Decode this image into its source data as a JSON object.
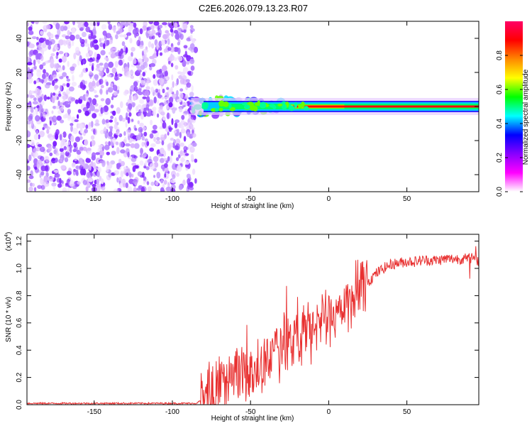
{
  "title": "C2E6.2026.079.13.23.R07",
  "chart_data": [
    {
      "type": "heatmap",
      "title": "C2E6.2026.079.13.23.R07",
      "xlabel": "Height of straight line (km)",
      "ylabel": "Frequency (Hz)",
      "xlim": [
        -193,
        96
      ],
      "ylim": [
        -50,
        50
      ],
      "xticks": [
        -150,
        -100,
        -50,
        0,
        50
      ],
      "xtick_labels": [
        "-150",
        "-100",
        "-50",
        "0",
        "50"
      ],
      "yticks": [
        -40,
        -20,
        0,
        20,
        40
      ],
      "ytick_labels": [
        "-40",
        "-20",
        "0",
        "20",
        "40"
      ],
      "noise_region_x": [
        -193,
        -85
      ],
      "signal_line_freq_hz": 0,
      "colorbar": {
        "label": "Normalized spectral amplitude",
        "range": [
          0,
          1
        ],
        "ticks": [
          0,
          0.2,
          0.4,
          0.6,
          0.8
        ],
        "tick_labels": [
          "0.0",
          "0.2",
          "0.4",
          "0.6",
          "0.8"
        ],
        "colormap": [
          "#ffffff",
          "#ff00ff",
          "#8800ff",
          "#0000ff",
          "#00ffff",
          "#00ff00",
          "#ffff00",
          "#ff8800",
          "#ff0000",
          "#ff0066"
        ]
      }
    },
    {
      "type": "line",
      "xlabel": "Height of straight line (km)",
      "ylabel": "SNR (10 * v/v)",
      "multiplier_label": "(x10",
      "multiplier_exp": "4",
      "xlim": [
        -193,
        96
      ],
      "ylim": [
        0,
        1.25
      ],
      "xticks": [
        -150,
        -100,
        -50,
        0,
        50
      ],
      "xtick_labels": [
        "-150",
        "-100",
        "-50",
        "0",
        "50"
      ],
      "yticks": [
        0,
        0.2,
        0.4,
        0.6,
        0.8,
        1.0,
        1.2
      ],
      "ytick_labels": [
        "0.0",
        "0.2",
        "0.4",
        "0.6",
        "0.8",
        "1.0",
        "1.2"
      ],
      "line_color": "#e83030",
      "series": [
        {
          "name": "SNR",
          "x": [
            -193,
            -150,
            -100,
            -85,
            -80,
            -75,
            -70,
            -65,
            -60,
            -55,
            -50,
            -45,
            -40,
            -35,
            -30,
            -25,
            -20,
            -15,
            -10,
            -5,
            0,
            5,
            10,
            15,
            20,
            25,
            30,
            35,
            40,
            45,
            50,
            55,
            60,
            65,
            70,
            75,
            80,
            85,
            90,
            93,
            96
          ],
          "y": [
            0.01,
            0.01,
            0.01,
            0.01,
            0.04,
            0.08,
            0.14,
            0.19,
            0.22,
            0.23,
            0.24,
            0.28,
            0.32,
            0.38,
            0.44,
            0.46,
            0.48,
            0.54,
            0.58,
            0.6,
            0.64,
            0.68,
            0.72,
            0.78,
            0.84,
            0.9,
            0.96,
            1.0,
            1.03,
            1.04,
            1.05,
            1.05,
            1.06,
            1.06,
            1.06,
            1.07,
            1.07,
            1.07,
            1.07,
            1.08,
            1.05
          ]
        }
      ]
    }
  ]
}
